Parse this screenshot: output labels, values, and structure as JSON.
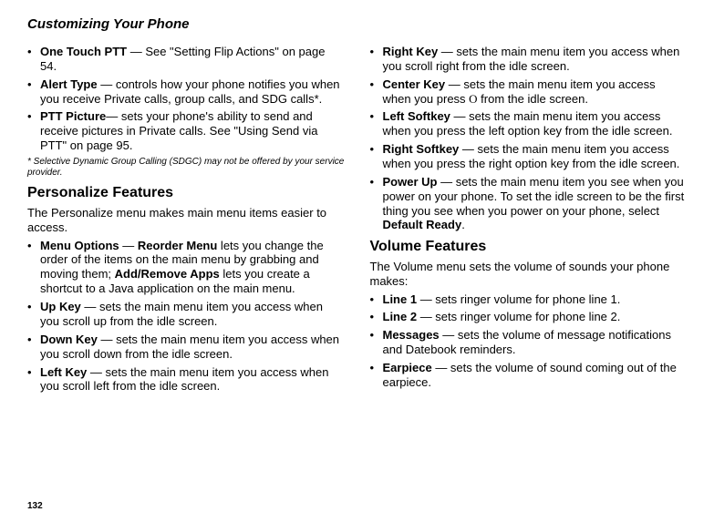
{
  "header": "Customizing Your Phone",
  "pageNumber": "132",
  "left": {
    "list1": [
      {
        "label": "One Touch PTT",
        "text": " — See \"Setting Flip Actions\" on page 54."
      },
      {
        "label": "Alert Type",
        "text": " — controls how your phone notifies you when you receive Private calls, group calls, and SDG calls*."
      },
      {
        "label": "PTT Picture",
        "text": "— sets your phone's ability to send and receive pictures in Private calls. See \"Using Send via PTT\" on page 95."
      }
    ],
    "footnote": "*  Selective Dynamic Group Calling (SDGC) may not be offered by your service provider.",
    "h2a": "Personalize Features",
    "p1": "The Personalize menu makes main menu items easier to access.",
    "list2": [
      {
        "label": "Menu Options",
        "mid": " — ",
        "label2": "Reorder Menu",
        "text1": " lets you change the order of the items on the main menu by grabbing and moving them; ",
        "label3": "Add/Remove Apps",
        "text2": " lets you create a shortcut to a Java application on the main menu."
      },
      {
        "label": "Up Key",
        "text": " — sets the main menu item you access when you scroll up from the idle screen."
      },
      {
        "label": "Down Key",
        "text": " — sets the main menu item you access when you scroll down from the idle screen."
      },
      {
        "label": "Left Key",
        "text": " — sets the main menu item you access when you scroll left from the idle screen."
      }
    ]
  },
  "right": {
    "list1": [
      {
        "label": "Right Key",
        "text": " — sets the main menu item you access when you scroll right from the idle screen."
      },
      {
        "label": "Center Key",
        "pre": " — sets the main menu item you access when you press ",
        "icon": "O",
        "post": " from the idle screen."
      },
      {
        "label": "Left Softkey",
        "text": " — sets the main menu item you access when you press the left option key from the idle screen."
      },
      {
        "label": "Right Softkey",
        "text": " — sets the main menu item you access when you press the right option key from the idle screen."
      },
      {
        "label": "Power Up",
        "pre": " — sets the main menu item you see when you power on your phone. To set the idle screen to be the first thing you see when you power on your phone, select ",
        "label2": "Default Ready",
        "post": "."
      }
    ],
    "h2a": "Volume Features",
    "p1": "The Volume menu sets the volume of sounds your phone makes:",
    "list2": [
      {
        "label": "Line 1",
        "text": " — sets ringer volume for phone line 1."
      },
      {
        "label": "Line 2",
        "text": " — sets ringer volume for phone line 2."
      },
      {
        "label": "Messages",
        "text": " — sets the volume of message notifications and Datebook reminders."
      },
      {
        "label": "Earpiece",
        "text": " — sets the volume of sound coming out of the earpiece."
      }
    ]
  }
}
